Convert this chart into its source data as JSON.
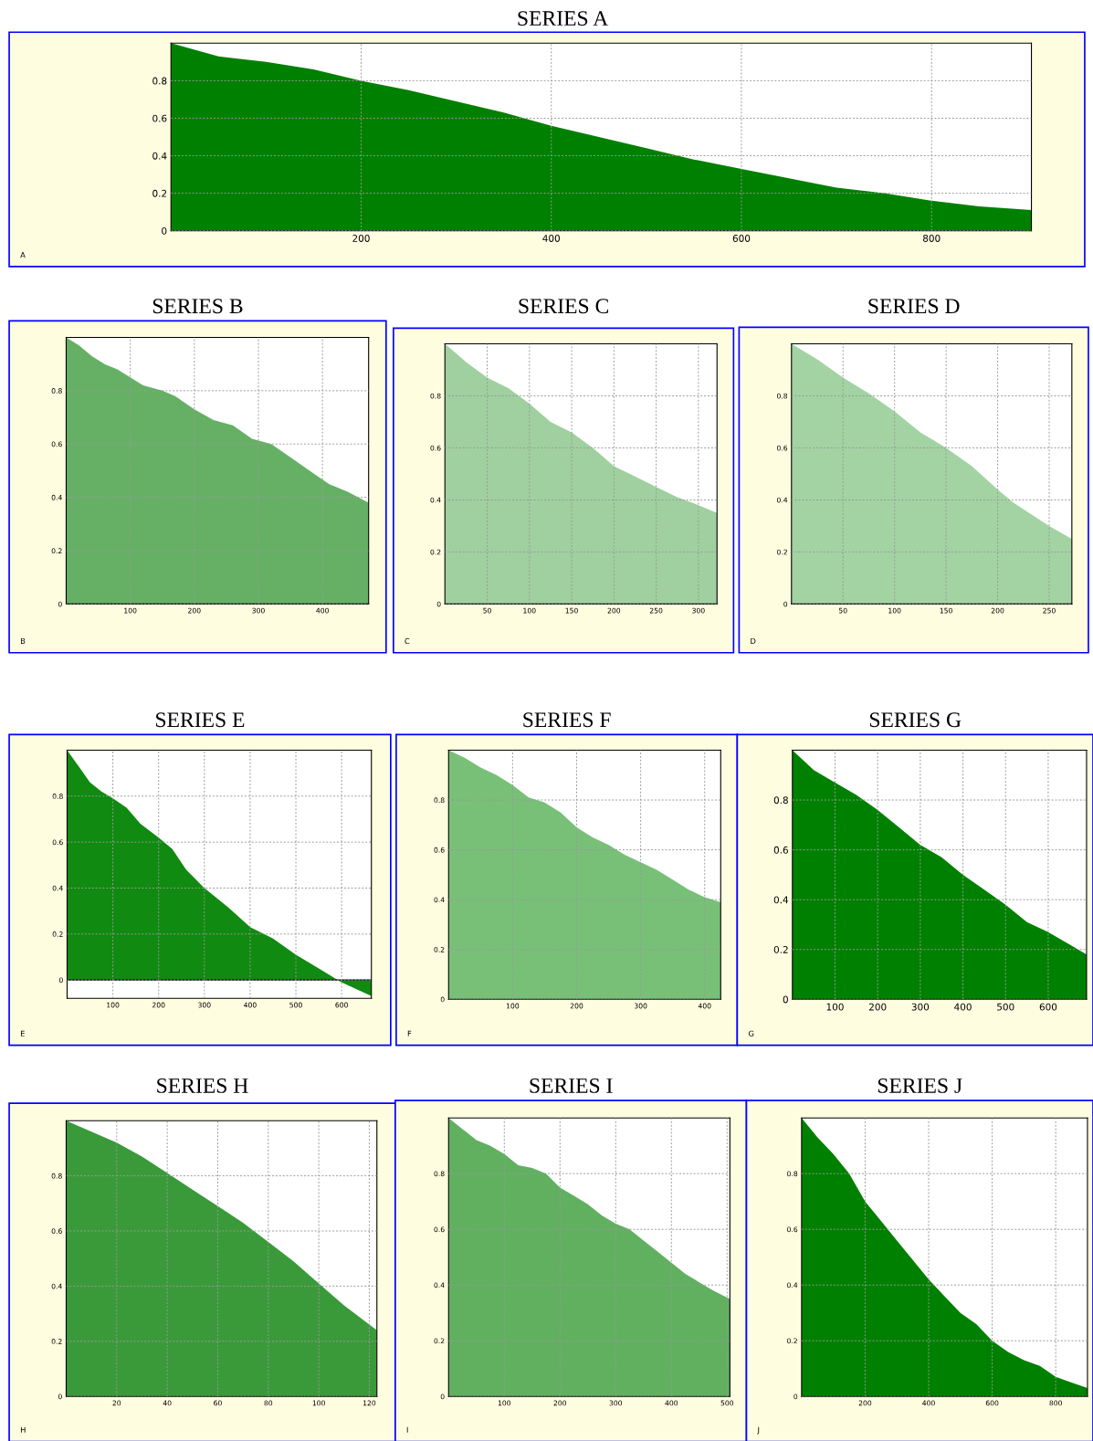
{
  "chart_data": [
    {
      "type": "area",
      "title": "SERIES A",
      "annotations": [
        "A"
      ],
      "color": "#008000",
      "grid": true,
      "xlim": [
        0,
        905
      ],
      "ylim": [
        0,
        1
      ],
      "xticks": [
        200,
        400,
        600,
        800
      ],
      "yticks": [
        0,
        0.2,
        0.4,
        0.6,
        0.8
      ],
      "x": [
        0,
        50,
        100,
        150,
        200,
        250,
        300,
        350,
        400,
        450,
        500,
        550,
        600,
        650,
        700,
        750,
        800,
        850,
        905
      ],
      "values": [
        1,
        0.93,
        0.9,
        0.86,
        0.8,
        0.75,
        0.69,
        0.63,
        0.56,
        0.5,
        0.44,
        0.38,
        0.33,
        0.28,
        0.23,
        0.2,
        0.16,
        0.13,
        0.11
      ]
    },
    {
      "type": "area",
      "title": "SERIES B",
      "annotations": [
        "B"
      ],
      "color": "#66b066",
      "grid": true,
      "xlim": [
        0,
        472
      ],
      "ylim": [
        0,
        1
      ],
      "xticks": [
        100,
        200,
        300,
        400
      ],
      "yticks": [
        0,
        0.2,
        0.4,
        0.6,
        0.8
      ],
      "x": [
        0,
        20,
        40,
        60,
        80,
        100,
        120,
        150,
        170,
        200,
        230,
        260,
        290,
        320,
        350,
        380,
        410,
        440,
        472
      ],
      "values": [
        1,
        0.97,
        0.93,
        0.9,
        0.88,
        0.85,
        0.82,
        0.8,
        0.78,
        0.73,
        0.69,
        0.67,
        0.62,
        0.6,
        0.55,
        0.5,
        0.45,
        0.42,
        0.38
      ]
    },
    {
      "type": "area",
      "title": "SERIES C",
      "annotations": [
        "C"
      ],
      "color": "#a0d0a0",
      "grid": true,
      "xlim": [
        0,
        322
      ],
      "ylim": [
        0,
        1
      ],
      "xticks": [
        50,
        100,
        150,
        200,
        250,
        300
      ],
      "yticks": [
        0,
        0.2,
        0.4,
        0.6,
        0.8
      ],
      "x": [
        0,
        25,
        50,
        75,
        100,
        125,
        150,
        175,
        200,
        225,
        250,
        275,
        300,
        322
      ],
      "values": [
        1,
        0.93,
        0.87,
        0.83,
        0.77,
        0.7,
        0.66,
        0.6,
        0.53,
        0.49,
        0.45,
        0.41,
        0.38,
        0.35
      ]
    },
    {
      "type": "area",
      "title": "SERIES D",
      "annotations": [
        "D"
      ],
      "color": "#a3d3a3",
      "grid": true,
      "xlim": [
        0,
        272
      ],
      "ylim": [
        0,
        1
      ],
      "xticks": [
        50,
        100,
        150,
        200,
        250
      ],
      "yticks": [
        0,
        0.2,
        0.4,
        0.6,
        0.8
      ],
      "x": [
        0,
        25,
        50,
        75,
        100,
        125,
        150,
        175,
        200,
        215,
        250,
        272
      ],
      "values": [
        1,
        0.94,
        0.87,
        0.81,
        0.74,
        0.66,
        0.6,
        0.53,
        0.44,
        0.39,
        0.3,
        0.25
      ]
    },
    {
      "type": "area",
      "title": "SERIES E",
      "annotations": [
        "E"
      ],
      "color": "#108a10",
      "grid": true,
      "xlim": [
        0,
        665
      ],
      "ylim": [
        -0.08,
        1
      ],
      "xticks": [
        100,
        200,
        300,
        400,
        500,
        600
      ],
      "yticks": [
        0,
        0.2,
        0.4,
        0.6,
        0.8
      ],
      "x": [
        0,
        25,
        50,
        75,
        100,
        130,
        160,
        200,
        230,
        260,
        300,
        350,
        400,
        450,
        500,
        550,
        600,
        665
      ],
      "values": [
        1,
        0.93,
        0.86,
        0.82,
        0.79,
        0.75,
        0.68,
        0.62,
        0.57,
        0.48,
        0.4,
        0.32,
        0.23,
        0.18,
        0.11,
        0.05,
        -0.01,
        -0.07
      ]
    },
    {
      "type": "area",
      "title": "SERIES F",
      "annotations": [
        "F"
      ],
      "color": "#78c078",
      "grid": true,
      "xlim": [
        0,
        425
      ],
      "ylim": [
        0,
        1
      ],
      "xticks": [
        100,
        200,
        300,
        400
      ],
      "yticks": [
        0,
        0.2,
        0.4,
        0.6,
        0.8
      ],
      "x": [
        0,
        25,
        50,
        75,
        100,
        125,
        150,
        175,
        200,
        225,
        250,
        275,
        300,
        325,
        350,
        375,
        400,
        425
      ],
      "values": [
        1,
        0.97,
        0.93,
        0.9,
        0.86,
        0.81,
        0.79,
        0.75,
        0.69,
        0.65,
        0.62,
        0.58,
        0.55,
        0.52,
        0.48,
        0.44,
        0.41,
        0.39
      ]
    },
    {
      "type": "area",
      "title": "SERIES G",
      "annotations": [
        "G"
      ],
      "color": "#008000",
      "grid": true,
      "xlim": [
        0,
        690
      ],
      "ylim": [
        0,
        1
      ],
      "xticks": [
        100,
        200,
        300,
        400,
        500,
        600
      ],
      "yticks": [
        0,
        0.2,
        0.4,
        0.6,
        0.8
      ],
      "x": [
        0,
        50,
        100,
        150,
        200,
        250,
        300,
        350,
        400,
        450,
        500,
        550,
        600,
        650,
        690
      ],
      "values": [
        1,
        0.92,
        0.87,
        0.82,
        0.76,
        0.69,
        0.62,
        0.57,
        0.5,
        0.44,
        0.38,
        0.31,
        0.27,
        0.22,
        0.18
      ]
    },
    {
      "type": "area",
      "title": "SERIES H",
      "annotations": [
        "H"
      ],
      "color": "#3a9a3a",
      "grid": true,
      "xlim": [
        0,
        123
      ],
      "ylim": [
        0,
        1
      ],
      "xticks": [
        20,
        40,
        60,
        80,
        100,
        120
      ],
      "yticks": [
        0,
        0.2,
        0.4,
        0.6,
        0.8
      ],
      "x": [
        0,
        10,
        20,
        30,
        40,
        50,
        60,
        70,
        80,
        90,
        100,
        110,
        123
      ],
      "values": [
        1,
        0.96,
        0.92,
        0.87,
        0.81,
        0.75,
        0.69,
        0.63,
        0.56,
        0.49,
        0.41,
        0.33,
        0.24
      ]
    },
    {
      "type": "area",
      "title": "SERIES I",
      "annotations": [
        "I"
      ],
      "color": "#60b060",
      "grid": true,
      "xlim": [
        0,
        505
      ],
      "ylim": [
        0,
        1
      ],
      "xticks": [
        100,
        200,
        300,
        400,
        500
      ],
      "yticks": [
        0,
        0.2,
        0.4,
        0.6,
        0.8
      ],
      "x": [
        0,
        25,
        50,
        75,
        100,
        125,
        150,
        175,
        200,
        225,
        250,
        275,
        300,
        325,
        350,
        375,
        400,
        425,
        450,
        475,
        505
      ],
      "values": [
        1,
        0.96,
        0.92,
        0.9,
        0.87,
        0.83,
        0.82,
        0.8,
        0.75,
        0.72,
        0.69,
        0.65,
        0.62,
        0.6,
        0.56,
        0.52,
        0.48,
        0.44,
        0.41,
        0.38,
        0.35
      ]
    },
    {
      "type": "area",
      "title": "SERIES J",
      "annotations": [
        "J"
      ],
      "color": "#008000",
      "grid": true,
      "xlim": [
        0,
        900
      ],
      "ylim": [
        0,
        1
      ],
      "xticks": [
        200,
        400,
        600,
        800
      ],
      "yticks": [
        0,
        0.2,
        0.4,
        0.6,
        0.8
      ],
      "x": [
        0,
        50,
        100,
        150,
        200,
        250,
        300,
        350,
        400,
        450,
        500,
        550,
        600,
        650,
        700,
        750,
        800,
        850,
        900
      ],
      "values": [
        1,
        0.93,
        0.87,
        0.8,
        0.7,
        0.63,
        0.56,
        0.49,
        0.42,
        0.36,
        0.3,
        0.26,
        0.2,
        0.16,
        0.13,
        0.11,
        0.07,
        0.05,
        0.03
      ]
    }
  ]
}
